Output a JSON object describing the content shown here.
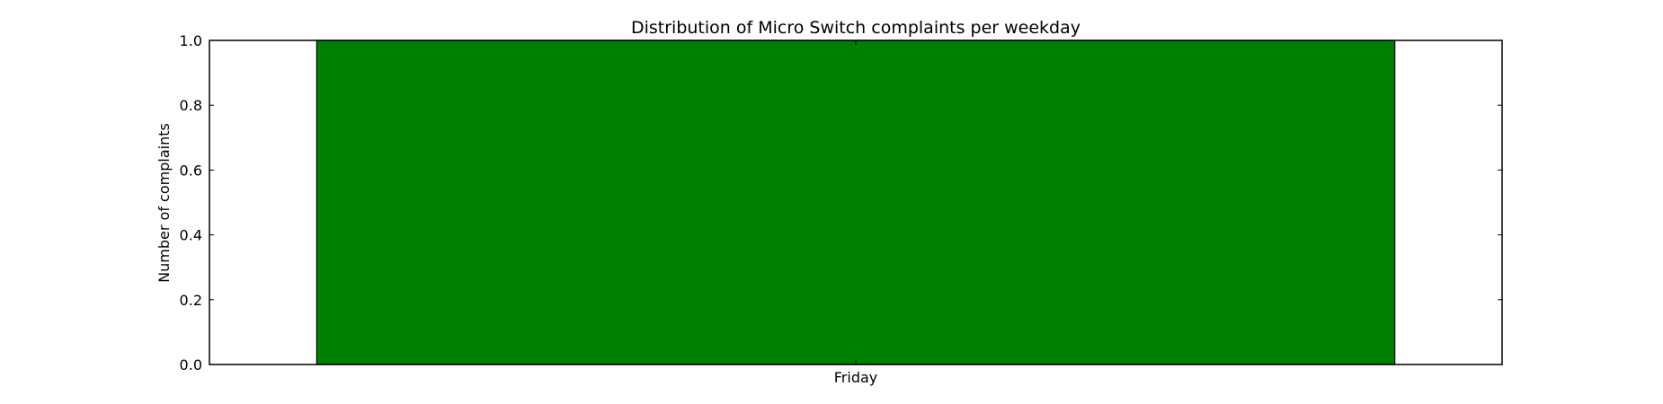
{
  "chart_data": {
    "type": "bar",
    "title": "Distribution of  Micro Switch complaints per weekday",
    "xlabel": "",
    "ylabel": "Number of complaints",
    "categories": [
      "Friday"
    ],
    "values": [
      1
    ],
    "ylim": [
      0,
      1
    ],
    "yticks": [
      "0.0",
      "0.2",
      "0.4",
      "0.6",
      "0.8",
      "1.0"
    ],
    "bar_color": "#008000",
    "grid": false
  }
}
